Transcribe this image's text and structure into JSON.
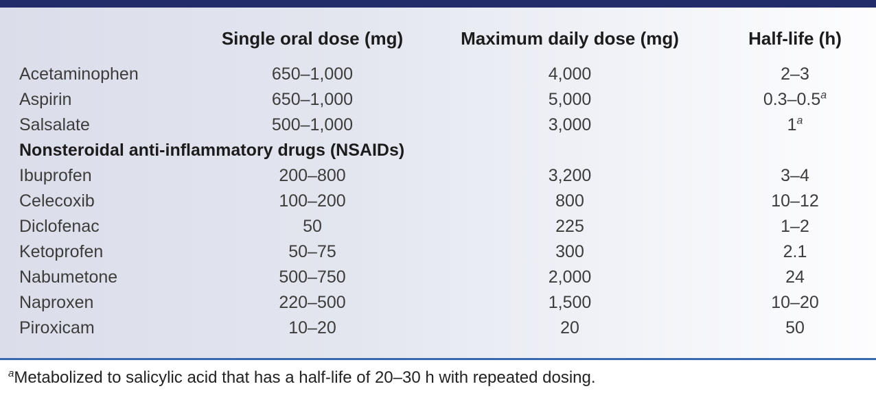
{
  "colors": {
    "top_bar": "#232c6a",
    "rule": "#3a68ae",
    "background_left": "#dbdeea",
    "background_right": "#fdfdfe",
    "text": "#3c3c3c"
  },
  "table": {
    "headers": [
      "",
      "Single oral dose (mg)",
      "Maximum daily dose (mg)",
      "Half-life (h)"
    ],
    "rows": [
      {
        "drug": "Acetaminophen",
        "single_dose": "650–1,000",
        "max_daily": "4,000",
        "half_life": "2–3"
      },
      {
        "drug": "Aspirin",
        "single_dose": "650–1,000",
        "max_daily": "5,000",
        "half_life": "0.3–0.5",
        "half_life_note": "a"
      },
      {
        "drug": "Salsalate",
        "single_dose": "500–1,000",
        "max_daily": "3,000",
        "half_life": "1",
        "half_life_note": "a"
      },
      {
        "section": "Nonsteroidal anti-inflammatory drugs (NSAIDs)"
      },
      {
        "drug": "Ibuprofen",
        "single_dose": "200–800",
        "max_daily": "3,200",
        "half_life": "3–4"
      },
      {
        "drug": "Celecoxib",
        "single_dose": "100–200",
        "max_daily": "800",
        "half_life": "10–12"
      },
      {
        "drug": "Diclofenac",
        "single_dose": "50",
        "max_daily": "225",
        "half_life": "1–2"
      },
      {
        "drug": "Ketoprofen",
        "single_dose": "50–75",
        "max_daily": "300",
        "half_life": "2.1"
      },
      {
        "drug": "Nabumetone",
        "single_dose": "500–750",
        "max_daily": "2,000",
        "half_life": "24"
      },
      {
        "drug": "Naproxen",
        "single_dose": "220–500",
        "max_daily": "1,500",
        "half_life": "10–20"
      },
      {
        "drug": "Piroxicam",
        "single_dose": "10–20",
        "max_daily": "20",
        "half_life": "50"
      }
    ]
  },
  "footnote": {
    "marker": "a",
    "text": "Metabolized to salicylic acid that has a half-life of 20–30 h with repeated dosing."
  }
}
